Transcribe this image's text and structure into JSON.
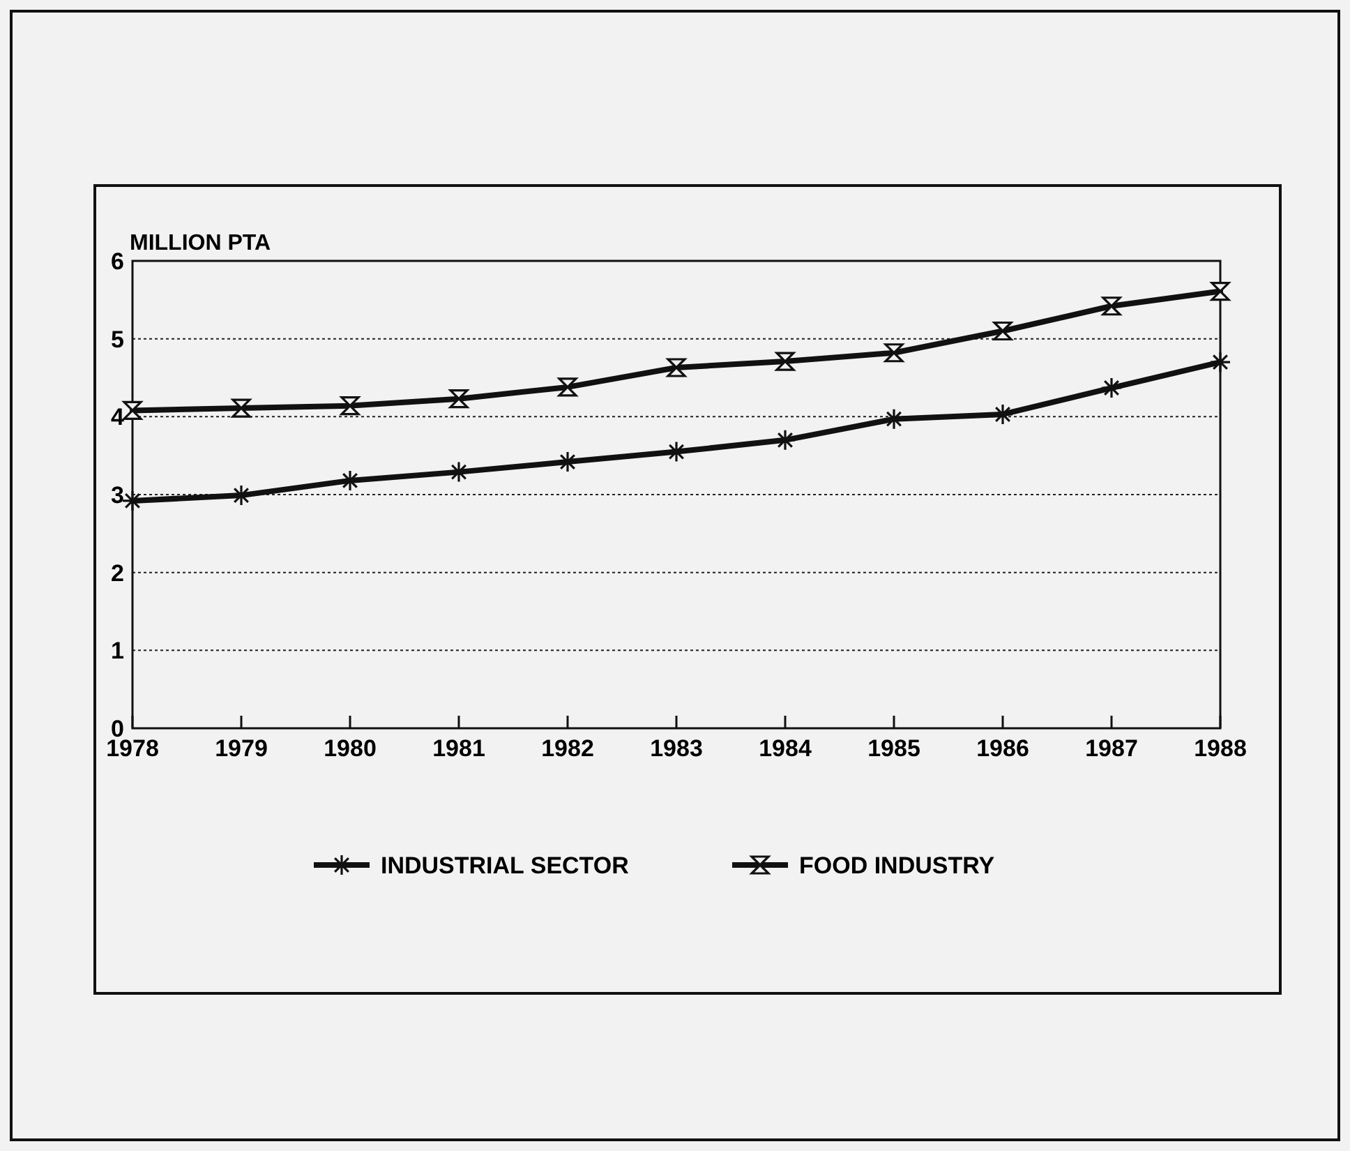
{
  "chart_data": {
    "type": "line",
    "ylabel": "MILLION PTA",
    "x": [
      1978,
      1979,
      1980,
      1981,
      1982,
      1983,
      1984,
      1985,
      1986,
      1987,
      1988
    ],
    "xlim": [
      1978,
      1988
    ],
    "xticks": [
      1978,
      1979,
      1980,
      1981,
      1982,
      1983,
      1984,
      1985,
      1986,
      1987,
      1988
    ],
    "ylim": [
      0,
      6
    ],
    "yticks": [
      0,
      1,
      2,
      3,
      4,
      5,
      6
    ],
    "grid": "y",
    "legend": "bottom",
    "line_style": "solid",
    "series": [
      {
        "name": "INDUSTRIAL SECTOR",
        "color": "#111111",
        "marker": "cross",
        "values": [
          2.92,
          2.99,
          3.18,
          3.29,
          3.42,
          3.55,
          3.7,
          3.97,
          4.03,
          4.37,
          4.7
        ]
      },
      {
        "name": "FOOD INDUSTRY",
        "color": "#111111",
        "marker": "cross",
        "values": [
          4.08,
          4.11,
          4.14,
          4.23,
          4.38,
          4.63,
          4.71,
          4.82,
          5.1,
          5.42,
          5.61
        ]
      }
    ]
  }
}
